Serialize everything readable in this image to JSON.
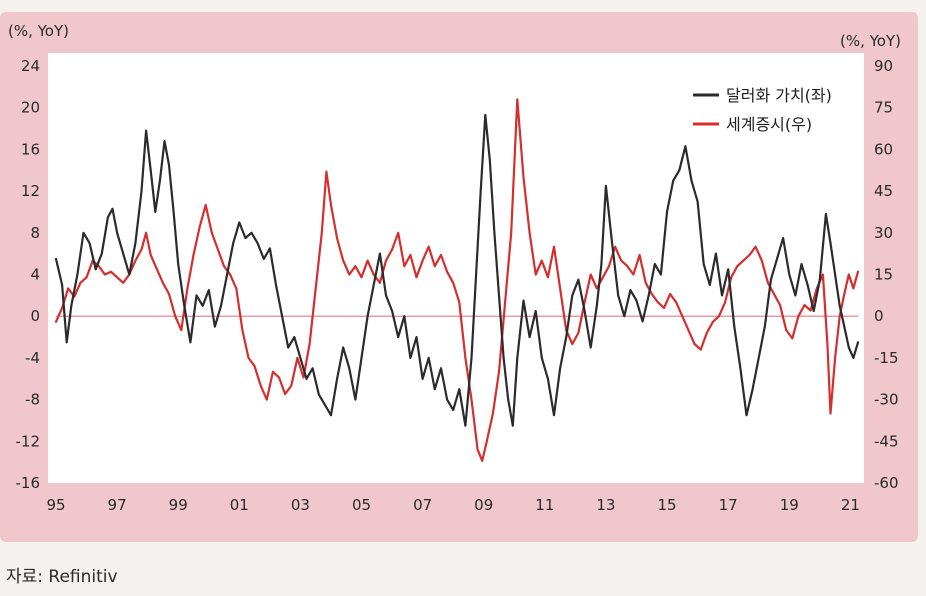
{
  "chart_data": {
    "type": "line",
    "left_axis_unit": "(%, YoY)",
    "right_axis_unit": "(%, YoY)",
    "x_ticks": [
      "95",
      "97",
      "99",
      "01",
      "03",
      "05",
      "07",
      "09",
      "11",
      "13",
      "15",
      "17",
      "19",
      "21"
    ],
    "left_ticks": [
      "24",
      "20",
      "16",
      "12",
      "8",
      "4",
      "0",
      "-4",
      "-8",
      "-12",
      "-16"
    ],
    "right_ticks": [
      "90",
      "75",
      "60",
      "45",
      "30",
      "15",
      "0",
      "-15",
      "-30",
      "-45",
      "-60"
    ],
    "left_ylim": [
      -16,
      24
    ],
    "right_ylim": [
      -60,
      90
    ],
    "xlim": [
      1995.0,
      2021.25
    ],
    "legend_position": "top-right",
    "series": [
      {
        "name": "달러화 가치(좌)",
        "axis": "left",
        "color": "#2b2b2b",
        "points": [
          [
            1995.0,
            5.5
          ],
          [
            1995.2,
            3.0
          ],
          [
            1995.35,
            -2.5
          ],
          [
            1995.5,
            1.0
          ],
          [
            1995.7,
            4.0
          ],
          [
            1995.9,
            8.0
          ],
          [
            1996.1,
            7.0
          ],
          [
            1996.3,
            4.5
          ],
          [
            1996.5,
            6.0
          ],
          [
            1996.7,
            9.5
          ],
          [
            1996.85,
            10.3
          ],
          [
            1997.0,
            8.0
          ],
          [
            1997.2,
            6.0
          ],
          [
            1997.4,
            4.0
          ],
          [
            1997.6,
            7.0
          ],
          [
            1997.8,
            12.0
          ],
          [
            1997.95,
            17.8
          ],
          [
            1998.1,
            14.0
          ],
          [
            1998.25,
            10.0
          ],
          [
            1998.4,
            13.0
          ],
          [
            1998.55,
            16.8
          ],
          [
            1998.7,
            14.5
          ],
          [
            1998.85,
            10.0
          ],
          [
            1999.0,
            5.0
          ],
          [
            1999.2,
            1.0
          ],
          [
            1999.4,
            -2.5
          ],
          [
            1999.6,
            2.0
          ],
          [
            1999.8,
            1.0
          ],
          [
            2000.0,
            2.5
          ],
          [
            2000.2,
            -1.0
          ],
          [
            2000.4,
            1.0
          ],
          [
            2000.6,
            4.0
          ],
          [
            2000.8,
            7.0
          ],
          [
            2001.0,
            9.0
          ],
          [
            2001.2,
            7.5
          ],
          [
            2001.4,
            8.0
          ],
          [
            2001.6,
            7.0
          ],
          [
            2001.8,
            5.5
          ],
          [
            2002.0,
            6.5
          ],
          [
            2002.2,
            3.0
          ],
          [
            2002.4,
            0.0
          ],
          [
            2002.6,
            -3.0
          ],
          [
            2002.8,
            -2.0
          ],
          [
            2003.0,
            -4.0
          ],
          [
            2003.2,
            -6.0
          ],
          [
            2003.4,
            -5.0
          ],
          [
            2003.6,
            -7.5
          ],
          [
            2003.8,
            -8.5
          ],
          [
            2004.0,
            -9.5
          ],
          [
            2004.2,
            -6.0
          ],
          [
            2004.4,
            -3.0
          ],
          [
            2004.6,
            -5.0
          ],
          [
            2004.8,
            -8.0
          ],
          [
            2005.0,
            -4.0
          ],
          [
            2005.2,
            0.0
          ],
          [
            2005.4,
            3.0
          ],
          [
            2005.6,
            6.0
          ],
          [
            2005.8,
            2.0
          ],
          [
            2006.0,
            0.5
          ],
          [
            2006.2,
            -2.0
          ],
          [
            2006.4,
            0.0
          ],
          [
            2006.6,
            -4.0
          ],
          [
            2006.8,
            -2.0
          ],
          [
            2007.0,
            -6.0
          ],
          [
            2007.2,
            -4.0
          ],
          [
            2007.4,
            -7.0
          ],
          [
            2007.6,
            -5.0
          ],
          [
            2007.8,
            -8.0
          ],
          [
            2008.0,
            -9.0
          ],
          [
            2008.2,
            -7.0
          ],
          [
            2008.4,
            -10.5
          ],
          [
            2008.6,
            -4.0
          ],
          [
            2008.75,
            4.0
          ],
          [
            2008.9,
            12.0
          ],
          [
            2009.05,
            19.3
          ],
          [
            2009.2,
            15.0
          ],
          [
            2009.35,
            8.0
          ],
          [
            2009.5,
            2.0
          ],
          [
            2009.65,
            -4.0
          ],
          [
            2009.8,
            -8.0
          ],
          [
            2009.95,
            -10.5
          ],
          [
            2010.1,
            -4.0
          ],
          [
            2010.3,
            1.5
          ],
          [
            2010.5,
            -2.0
          ],
          [
            2010.7,
            0.5
          ],
          [
            2010.9,
            -4.0
          ],
          [
            2011.1,
            -6.0
          ],
          [
            2011.3,
            -9.5
          ],
          [
            2011.5,
            -5.0
          ],
          [
            2011.7,
            -2.0
          ],
          [
            2011.9,
            2.0
          ],
          [
            2012.1,
            3.5
          ],
          [
            2012.3,
            0.5
          ],
          [
            2012.5,
            -3.0
          ],
          [
            2012.7,
            1.0
          ],
          [
            2012.85,
            5.0
          ],
          [
            2013.0,
            12.5
          ],
          [
            2013.2,
            7.0
          ],
          [
            2013.4,
            2.0
          ],
          [
            2013.6,
            0.0
          ],
          [
            2013.8,
            2.5
          ],
          [
            2014.0,
            1.5
          ],
          [
            2014.2,
            -0.5
          ],
          [
            2014.4,
            2.0
          ],
          [
            2014.6,
            5.0
          ],
          [
            2014.8,
            4.0
          ],
          [
            2015.0,
            10.0
          ],
          [
            2015.2,
            13.0
          ],
          [
            2015.4,
            14.0
          ],
          [
            2015.6,
            16.3
          ],
          [
            2015.8,
            13.0
          ],
          [
            2016.0,
            11.0
          ],
          [
            2016.2,
            5.0
          ],
          [
            2016.4,
            3.0
          ],
          [
            2016.6,
            6.0
          ],
          [
            2016.8,
            2.0
          ],
          [
            2017.0,
            4.5
          ],
          [
            2017.2,
            -1.0
          ],
          [
            2017.4,
            -5.0
          ],
          [
            2017.6,
            -9.5
          ],
          [
            2017.8,
            -7.0
          ],
          [
            2018.0,
            -4.0
          ],
          [
            2018.2,
            -1.0
          ],
          [
            2018.4,
            3.5
          ],
          [
            2018.6,
            5.5
          ],
          [
            2018.8,
            7.5
          ],
          [
            2019.0,
            4.0
          ],
          [
            2019.2,
            2.0
          ],
          [
            2019.4,
            5.0
          ],
          [
            2019.6,
            3.0
          ],
          [
            2019.8,
            0.5
          ],
          [
            2020.0,
            3.5
          ],
          [
            2020.2,
            9.8
          ],
          [
            2020.35,
            7.0
          ],
          [
            2020.5,
            4.0
          ],
          [
            2020.65,
            1.0
          ],
          [
            2020.8,
            -1.0
          ],
          [
            2020.95,
            -3.0
          ],
          [
            2021.1,
            -4.0
          ],
          [
            2021.25,
            -2.5
          ]
        ]
      },
      {
        "name": "세계증시(우)",
        "axis": "right",
        "color": "#d62d2d",
        "points": [
          [
            1995.0,
            -2.0
          ],
          [
            1995.2,
            3.0
          ],
          [
            1995.4,
            10.0
          ],
          [
            1995.6,
            7.0
          ],
          [
            1995.8,
            12.0
          ],
          [
            1996.0,
            14.0
          ],
          [
            1996.2,
            20.0
          ],
          [
            1996.4,
            18.0
          ],
          [
            1996.6,
            15.0
          ],
          [
            1996.8,
            16.0
          ],
          [
            1997.0,
            14.0
          ],
          [
            1997.2,
            12.0
          ],
          [
            1997.4,
            15.0
          ],
          [
            1997.6,
            20.0
          ],
          [
            1997.8,
            24.0
          ],
          [
            1997.95,
            30.0
          ],
          [
            1998.1,
            22.0
          ],
          [
            1998.3,
            17.0
          ],
          [
            1998.5,
            12.0
          ],
          [
            1998.7,
            8.0
          ],
          [
            1998.9,
            0.0
          ],
          [
            1999.1,
            -5.0
          ],
          [
            1999.3,
            10.0
          ],
          [
            1999.5,
            22.0
          ],
          [
            1999.7,
            32.0
          ],
          [
            1999.9,
            40.0
          ],
          [
            2000.1,
            30.0
          ],
          [
            2000.3,
            24.0
          ],
          [
            2000.5,
            18.0
          ],
          [
            2000.7,
            15.0
          ],
          [
            2000.9,
            10.0
          ],
          [
            2001.1,
            -5.0
          ],
          [
            2001.3,
            -15.0
          ],
          [
            2001.5,
            -18.0
          ],
          [
            2001.7,
            -25.0
          ],
          [
            2001.9,
            -30.0
          ],
          [
            2002.1,
            -20.0
          ],
          [
            2002.3,
            -22.0
          ],
          [
            2002.5,
            -28.0
          ],
          [
            2002.7,
            -25.0
          ],
          [
            2002.9,
            -15.0
          ],
          [
            2003.1,
            -22.0
          ],
          [
            2003.3,
            -10.0
          ],
          [
            2003.5,
            10.0
          ],
          [
            2003.7,
            30.0
          ],
          [
            2003.85,
            52.0
          ],
          [
            2004.0,
            40.0
          ],
          [
            2004.2,
            28.0
          ],
          [
            2004.4,
            20.0
          ],
          [
            2004.6,
            15.0
          ],
          [
            2004.8,
            18.0
          ],
          [
            2005.0,
            14.0
          ],
          [
            2005.2,
            20.0
          ],
          [
            2005.4,
            15.0
          ],
          [
            2005.6,
            12.0
          ],
          [
            2005.8,
            20.0
          ],
          [
            2006.0,
            24.0
          ],
          [
            2006.2,
            30.0
          ],
          [
            2006.4,
            18.0
          ],
          [
            2006.6,
            22.0
          ],
          [
            2006.8,
            14.0
          ],
          [
            2007.0,
            20.0
          ],
          [
            2007.2,
            25.0
          ],
          [
            2007.4,
            18.0
          ],
          [
            2007.6,
            22.0
          ],
          [
            2007.8,
            16.0
          ],
          [
            2008.0,
            12.0
          ],
          [
            2008.2,
            5.0
          ],
          [
            2008.4,
            -15.0
          ],
          [
            2008.6,
            -30.0
          ],
          [
            2008.8,
            -48.0
          ],
          [
            2008.95,
            -52.0
          ],
          [
            2009.1,
            -45.0
          ],
          [
            2009.3,
            -35.0
          ],
          [
            2009.5,
            -20.0
          ],
          [
            2009.7,
            5.0
          ],
          [
            2009.9,
            30.0
          ],
          [
            2010.1,
            78.0
          ],
          [
            2010.3,
            50.0
          ],
          [
            2010.5,
            30.0
          ],
          [
            2010.7,
            15.0
          ],
          [
            2010.9,
            20.0
          ],
          [
            2011.1,
            14.0
          ],
          [
            2011.3,
            25.0
          ],
          [
            2011.5,
            10.0
          ],
          [
            2011.7,
            -5.0
          ],
          [
            2011.9,
            -10.0
          ],
          [
            2012.1,
            -6.0
          ],
          [
            2012.3,
            5.0
          ],
          [
            2012.5,
            15.0
          ],
          [
            2012.7,
            10.0
          ],
          [
            2012.9,
            14.0
          ],
          [
            2013.1,
            18.0
          ],
          [
            2013.3,
            25.0
          ],
          [
            2013.5,
            20.0
          ],
          [
            2013.7,
            18.0
          ],
          [
            2013.9,
            15.0
          ],
          [
            2014.1,
            22.0
          ],
          [
            2014.3,
            12.0
          ],
          [
            2014.5,
            8.0
          ],
          [
            2014.7,
            5.0
          ],
          [
            2014.9,
            3.0
          ],
          [
            2015.1,
            8.0
          ],
          [
            2015.3,
            5.0
          ],
          [
            2015.5,
            0.0
          ],
          [
            2015.7,
            -5.0
          ],
          [
            2015.9,
            -10.0
          ],
          [
            2016.1,
            -12.0
          ],
          [
            2016.3,
            -6.0
          ],
          [
            2016.5,
            -2.0
          ],
          [
            2016.7,
            0.0
          ],
          [
            2016.9,
            5.0
          ],
          [
            2017.1,
            14.0
          ],
          [
            2017.3,
            18.0
          ],
          [
            2017.5,
            20.0
          ],
          [
            2017.7,
            22.0
          ],
          [
            2017.9,
            25.0
          ],
          [
            2018.1,
            20.0
          ],
          [
            2018.3,
            12.0
          ],
          [
            2018.5,
            8.0
          ],
          [
            2018.7,
            4.0
          ],
          [
            2018.9,
            -5.0
          ],
          [
            2019.1,
            -8.0
          ],
          [
            2019.3,
            0.0
          ],
          [
            2019.5,
            4.0
          ],
          [
            2019.7,
            2.0
          ],
          [
            2019.9,
            10.0
          ],
          [
            2020.1,
            15.0
          ],
          [
            2020.25,
            -10.0
          ],
          [
            2020.35,
            -35.0
          ],
          [
            2020.5,
            -15.0
          ],
          [
            2020.65,
            0.0
          ],
          [
            2020.8,
            8.0
          ],
          [
            2020.95,
            15.0
          ],
          [
            2021.1,
            10.0
          ],
          [
            2021.25,
            16.0
          ]
        ]
      }
    ],
    "zero_line_color": "#e27b84"
  },
  "source_note": "자료: Refinitiv"
}
